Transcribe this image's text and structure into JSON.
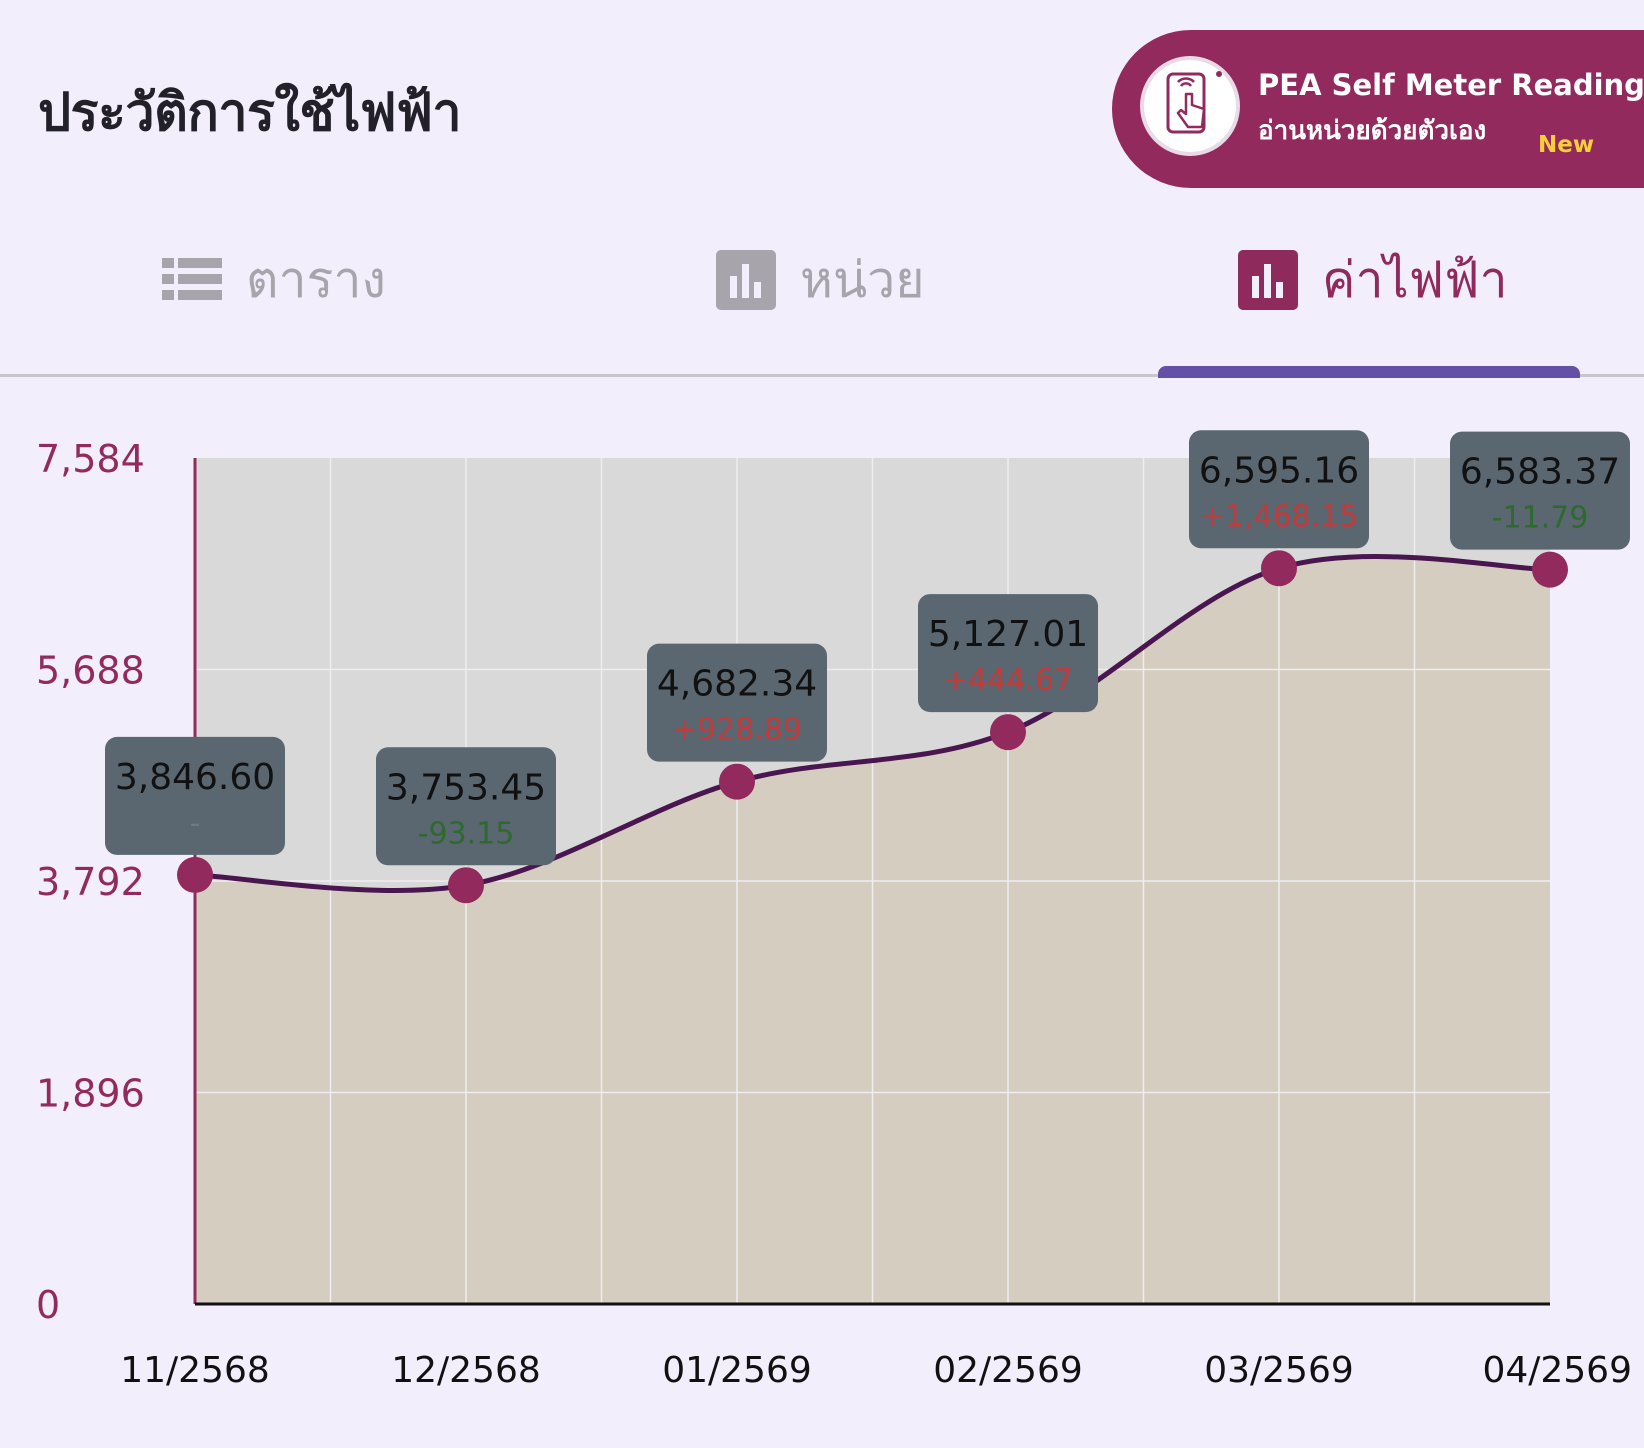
{
  "header": {
    "title": "ประวัติการใช้ไฟฟ้า"
  },
  "pea_banner": {
    "title": "PEA Self Meter Reading",
    "subtitle": "อ่านหน่วยด้วยตัวเอง",
    "badge": "New",
    "icon": "phone-tap-icon",
    "color": "#922a5e"
  },
  "tabs": [
    {
      "label": "ตาราง",
      "icon": "list-icon",
      "active": false
    },
    {
      "label": "หน่วย",
      "icon": "bar-chart-icon",
      "active": false
    },
    {
      "label": "ค่าไฟฟ้า",
      "icon": "bar-chart-icon",
      "active": true
    }
  ],
  "colors": {
    "accent": "#922a5e",
    "tab_indicator": "#6450a6",
    "line": "#4a1650",
    "point": "#922a5e",
    "area": "#d5cdbf",
    "plot_bg": "#d9d9d9",
    "label_bg": "#5a6670",
    "increase": "#c23a3a",
    "decrease": "#2e6a2e"
  },
  "chart_data": {
    "type": "area",
    "categories": [
      "11/2568",
      "12/2568",
      "01/2569",
      "02/2569",
      "03/2569",
      "04/2569"
    ],
    "values": [
      3846.6,
      3753.45,
      4682.34,
      5127.01,
      6595.16,
      6583.37
    ],
    "value_labels": [
      "3,846.60",
      "3,753.45",
      "4,682.34",
      "5,127.01",
      "6,595.16",
      "6,583.37"
    ],
    "change_labels": [
      "-",
      "-93.15",
      "+928.89",
      "+444.67",
      "+1,468.15",
      "-11.79"
    ],
    "change_direction": [
      "none",
      "down",
      "up",
      "up",
      "up",
      "down"
    ],
    "yticks": [
      "7,584",
      "5,688",
      "3,792",
      "1,896",
      "0"
    ],
    "ylim": [
      0,
      7584
    ],
    "grid": true,
    "smooth": true
  }
}
